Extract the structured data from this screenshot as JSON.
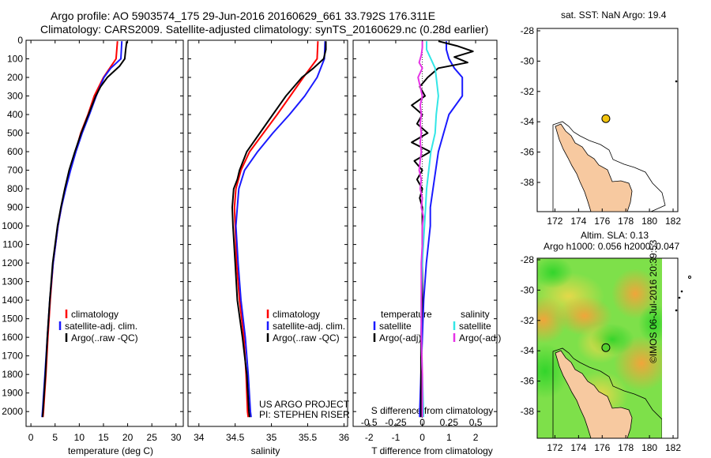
{
  "header": {
    "line1": "Argo profile: AO 5903574_175 29-Jun-2016 20160629_661 33.792S 176.311E",
    "line2": "Climatology: CARS2009. Satellite-adjusted climatology: synTS_20160629.nc (0.28d earlier)"
  },
  "colors": {
    "climatology": "#ff0000",
    "satellite": "#1a1aff",
    "argo": "#000000",
    "salinity_satellite": "#33e6e6",
    "salinity_argo": "#e633e6",
    "land": "#f7c9a0"
  },
  "chart_data": [
    {
      "type": "line",
      "panel": "temperature",
      "xlabel": "temperature (deg C)",
      "ylabel": "",
      "xlim": [
        -1,
        31.5
      ],
      "ylim": [
        2080,
        0
      ],
      "xticks": [
        0,
        5,
        10,
        15,
        20,
        25,
        30
      ],
      "yticks": [
        0,
        100,
        200,
        300,
        400,
        500,
        600,
        700,
        800,
        900,
        1000,
        1100,
        1200,
        1300,
        1400,
        1500,
        1600,
        1700,
        1800,
        1900,
        2000
      ],
      "legend": [
        "climatology",
        "satellite-adj. clim.",
        "Argo(..raw -QC)"
      ],
      "series": [
        {
          "name": "climatology",
          "color": "#ff0000",
          "depth": [
            5,
            100,
            150,
            200,
            300,
            400,
            500,
            600,
            700,
            800,
            900,
            1000,
            1200,
            1400,
            1600,
            1800,
            2000,
            2030
          ],
          "values": [
            17.9,
            17.6,
            16.3,
            15.0,
            13.1,
            11.8,
            10.3,
            9.2,
            8.0,
            7.1,
            6.3,
            5.6,
            4.6,
            4.0,
            3.5,
            3.1,
            2.6,
            2.5
          ]
        },
        {
          "name": "satellite-adj. clim.",
          "color": "#1a1aff",
          "depth": [
            5,
            100,
            150,
            200,
            300,
            400,
            500,
            600,
            700,
            800,
            900,
            1000,
            1200,
            1400,
            1600,
            1800,
            2000,
            2030
          ],
          "values": [
            18.8,
            18.6,
            16.5,
            15.1,
            13.5,
            12.1,
            10.6,
            9.3,
            8.2,
            7.2,
            6.3,
            5.6,
            4.6,
            3.9,
            3.4,
            2.9,
            2.4,
            2.3
          ]
        },
        {
          "name": "Argo(..raw -QC)",
          "color": "#000000",
          "depth": [
            5,
            50,
            100,
            140,
            200,
            250,
            300,
            400,
            500,
            600,
            700,
            800,
            900,
            1000,
            1200,
            1400,
            1600,
            1800,
            2000,
            2030
          ],
          "values": [
            19.8,
            19.6,
            19.4,
            18.3,
            15.8,
            14.4,
            13.4,
            11.9,
            10.4,
            9.1,
            7.9,
            7.0,
            6.2,
            5.5,
            4.5,
            3.9,
            3.4,
            3.0,
            2.5,
            2.4
          ]
        }
      ]
    },
    {
      "type": "line",
      "panel": "salinity",
      "xlabel": "salinity",
      "ylabel": "",
      "xlim": [
        33.85,
        36.05
      ],
      "ylim": [
        2080,
        0
      ],
      "xticks": [
        34,
        34.5,
        35,
        35.5,
        36
      ],
      "legend": [
        "climatology",
        "satellite-adj. clim.",
        "Argo(..raw -QC)"
      ],
      "series": [
        {
          "name": "climatology",
          "color": "#ff0000",
          "depth": [
            5,
            100,
            200,
            300,
            400,
            500,
            600,
            700,
            800,
            900,
            1000,
            1200,
            1400,
            1600,
            1800,
            2000,
            2030
          ],
          "values": [
            35.64,
            35.63,
            35.44,
            35.26,
            35.08,
            34.89,
            34.7,
            34.58,
            34.51,
            34.49,
            34.5,
            34.52,
            34.56,
            34.62,
            34.65,
            34.67,
            34.68
          ]
        },
        {
          "name": "satellite-adj. clim.",
          "color": "#1a1aff",
          "depth": [
            5,
            100,
            200,
            300,
            400,
            500,
            600,
            700,
            800,
            900,
            1000,
            1200,
            1400,
            1600,
            1800,
            2000,
            2030
          ],
          "values": [
            35.74,
            35.73,
            35.63,
            35.46,
            35.25,
            35.02,
            34.81,
            34.63,
            34.55,
            34.53,
            34.51,
            34.54,
            34.58,
            34.64,
            34.68,
            34.71,
            34.72
          ]
        },
        {
          "name": "Argo(..raw -QC)",
          "color": "#000000",
          "depth": [
            5,
            50,
            100,
            150,
            200,
            300,
            400,
            500,
            600,
            700,
            750,
            800,
            850,
            900,
            1000,
            1200,
            1400,
            1600,
            1800,
            2000,
            2030
          ],
          "values": [
            35.75,
            35.75,
            35.72,
            35.58,
            35.42,
            35.2,
            35.02,
            34.84,
            34.66,
            34.56,
            34.53,
            34.48,
            34.47,
            34.46,
            34.47,
            34.5,
            34.53,
            34.6,
            34.66,
            34.69,
            34.7
          ]
        }
      ]
    },
    {
      "type": "line",
      "panel": "difference",
      "xlabel": "T difference from climatology",
      "xlabel_top": "S difference from climatology",
      "xlim": [
        -2.6,
        2.8
      ],
      "ylim": [
        2080,
        0
      ],
      "xticks": [
        -2,
        -1,
        0,
        1,
        2
      ],
      "xticks_s": [
        "-0.5",
        "-0.25",
        "0",
        "0.25",
        "0.5"
      ],
      "legend_temperature": [
        "temperature",
        "satellite",
        "Argo(-adj)"
      ],
      "legend_salinity": [
        "salinity",
        "satellite",
        "Argo(-adj)"
      ],
      "series": [
        {
          "name": "satellite",
          "quantity": "T",
          "color": "#1a1aff",
          "depth": [
            5,
            50,
            100,
            150,
            200,
            300,
            400,
            500,
            600,
            700,
            800,
            900,
            1000,
            1200,
            1400,
            1600,
            1800,
            2000,
            2030
          ],
          "values": [
            0.9,
            0.9,
            1.0,
            1.2,
            1.5,
            1.5,
            1.0,
            0.8,
            0.6,
            0.5,
            0.4,
            0.3,
            0.3,
            0.15,
            0.05,
            0.0,
            -0.05,
            -0.1,
            -0.1
          ]
        },
        {
          "name": "Argo(-adj)",
          "quantity": "T",
          "color": "#000000",
          "depth": [
            5,
            30,
            60,
            90,
            120,
            150,
            200,
            250,
            300,
            350,
            400,
            450,
            500,
            550,
            600,
            650,
            700,
            750,
            800,
            850,
            900,
            1000,
            1200,
            1400,
            1600,
            1800,
            2000,
            2030
          ],
          "values": [
            0.6,
            1.3,
            1.9,
            1.2,
            1.7,
            0.6,
            0.2,
            -0.1,
            0.1,
            -0.4,
            0.0,
            -0.2,
            0.2,
            -0.4,
            0.3,
            -0.3,
            0.0,
            -0.2,
            0.0,
            -0.1,
            0.0,
            0.0,
            0.0,
            0.0,
            -0.05,
            -0.05,
            -0.05,
            -0.05
          ]
        },
        {
          "name": "satellite",
          "quantity": "S",
          "color": "#33e6e6",
          "depth": [
            5,
            50,
            100,
            150,
            200,
            300,
            400,
            500,
            600,
            700,
            800,
            900,
            1000,
            1200,
            1400,
            1600,
            1800,
            2000,
            2030
          ],
          "values": [
            0.04,
            0.04,
            0.08,
            0.12,
            0.13,
            0.15,
            0.13,
            0.12,
            0.08,
            0.06,
            0.04,
            0.03,
            0.02,
            0.0,
            -0.01,
            -0.01,
            0.0,
            0.01,
            0.01
          ]
        },
        {
          "name": "Argo(-adj)",
          "quantity": "S",
          "color": "#e633e6",
          "depth": [
            5,
            40,
            80,
            120,
            150,
            200,
            250,
            300,
            350,
            400,
            450,
            500,
            550,
            600,
            650,
            700,
            750,
            800,
            850,
            900,
            950,
            1000,
            1100,
            1200,
            1400,
            1600,
            1800,
            2000,
            2030
          ],
          "values": [
            0.0,
            0.0,
            -0.01,
            -0.03,
            0.0,
            -0.04,
            -0.02,
            0.0,
            -0.02,
            -0.01,
            -0.02,
            -0.01,
            -0.02,
            -0.01,
            -0.02,
            -0.03,
            -0.01,
            -0.02,
            0.0,
            -0.01,
            0.01,
            0.0,
            0.0,
            -0.01,
            -0.01,
            -0.01,
            0.0,
            0.0,
            0.0
          ]
        }
      ]
    }
  ],
  "map_sst": {
    "title": "sat. SST: NaN Argo: 19.4",
    "xticks": [
      "172",
      "174",
      "176",
      "178",
      "180",
      "182"
    ],
    "yticks": [
      "-28",
      "-30",
      "-32",
      "-34",
      "-36",
      "-38"
    ],
    "argo_lon": 176.311,
    "argo_lat": -33.792,
    "marker_color": "#f2c40f"
  },
  "map_sla": {
    "title1": "Altim. SLA: 0.13",
    "title2": "Argo h1000: 0.056 h2000: 0.047",
    "xticks": [
      "172",
      "174",
      "176",
      "178",
      "180",
      "182"
    ],
    "yticks": [
      "-28",
      "-30",
      "-32",
      "-34",
      "-36",
      "-38"
    ],
    "argo_lon": 176.311,
    "argo_lat": -33.792,
    "marker_color": "#55d230"
  },
  "credit_text": "©IMOS 06-Jul-2016 20:39:53",
  "project_text": {
    "line1": "US ARGO PROJECT",
    "line2": "PI: STEPHEN RISER"
  }
}
